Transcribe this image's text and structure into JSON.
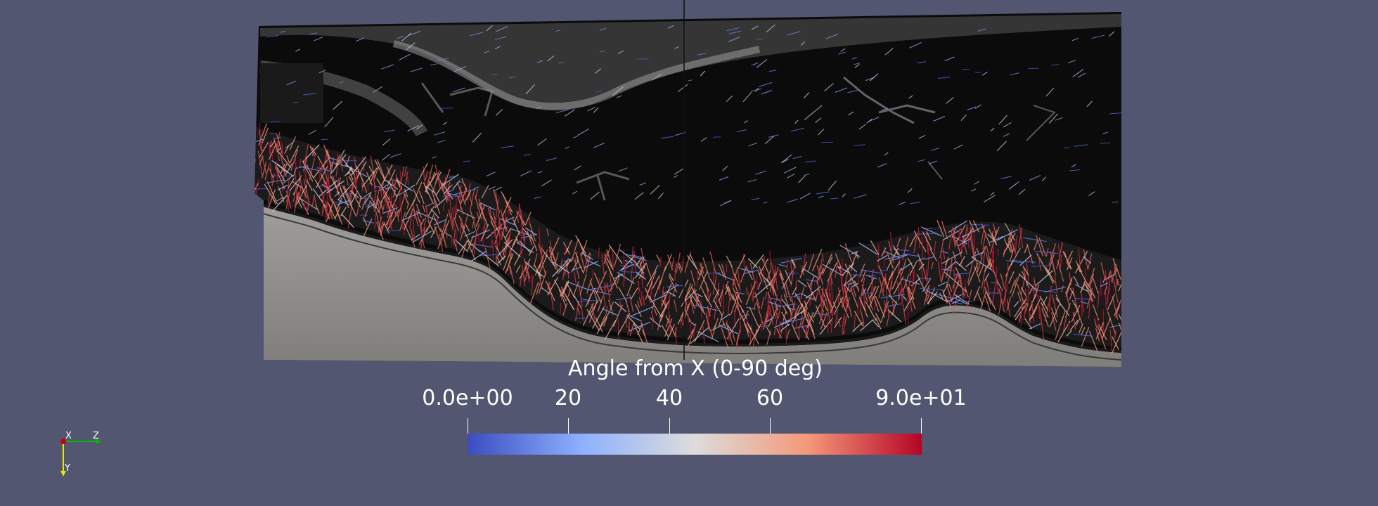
{
  "colorbar": {
    "title": "Angle from X (0-90 deg)",
    "range": [
      0,
      90
    ],
    "ticks": [
      {
        "value": 0,
        "label": "0.0e+00"
      },
      {
        "value": 20,
        "label": "20"
      },
      {
        "value": 40,
        "label": "40"
      },
      {
        "value": 60,
        "label": "60"
      },
      {
        "value": 90,
        "label": "9.0e+01"
      }
    ],
    "colormap": [
      "#3b4cc0",
      "#8db0fe",
      "#dddcdc",
      "#f4987a",
      "#b40426"
    ]
  },
  "axes": {
    "x_label": "X",
    "y_label": "Y",
    "z_label": "Z",
    "x_color": "#cc0000",
    "y_color": "#e8e800",
    "z_color": "#00bb00"
  },
  "colors": {
    "background": "#525670",
    "image_dark": "#0b0b0b",
    "image_light": "#8a8a8a"
  }
}
